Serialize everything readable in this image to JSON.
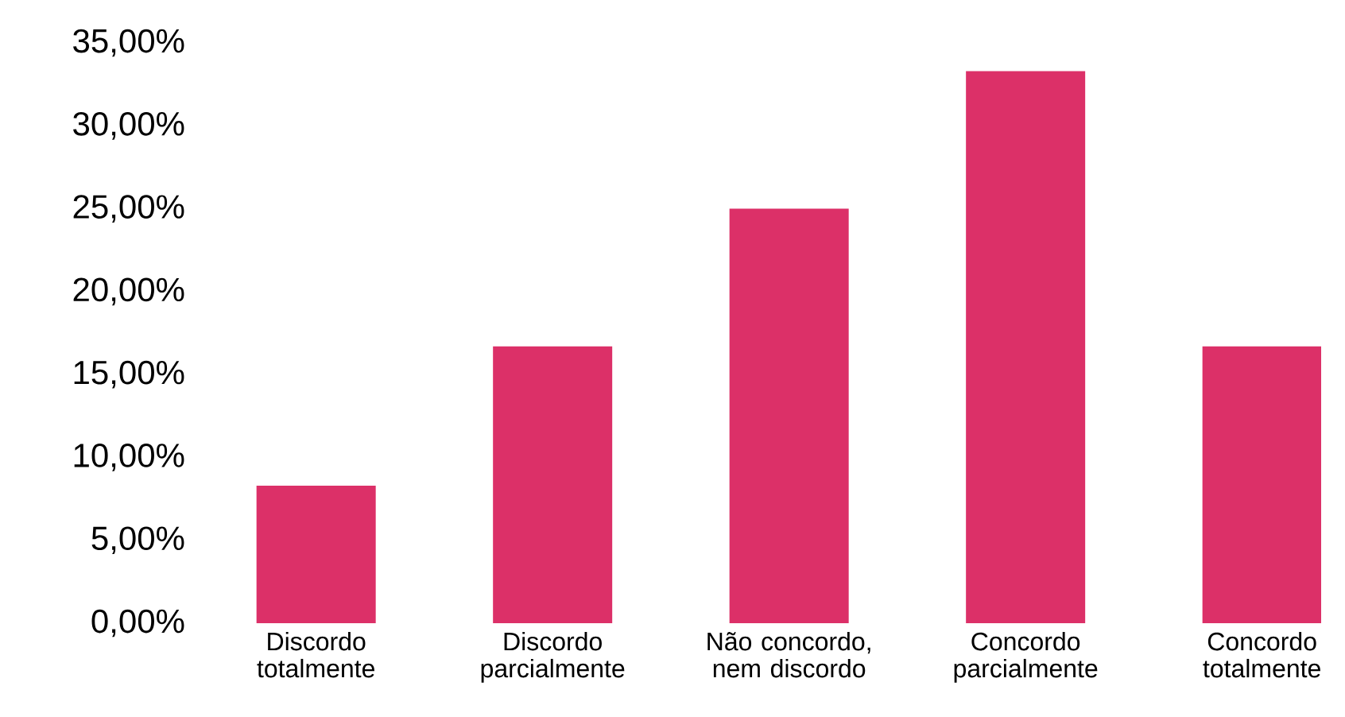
{
  "chart_data": {
    "type": "bar",
    "categories": [
      "Discordo totalmente",
      "Discordo parcialmente",
      "Não concordo, nem discordo",
      "Concordo parcialmente",
      "Concordo totalmente"
    ],
    "values": [
      8.3,
      16.7,
      25,
      33.3,
      16.7
    ],
    "color": "#dc3068",
    "ylim": [
      0,
      35
    ],
    "yticks": [
      {
        "value": 0,
        "label": "0,00%"
      },
      {
        "value": 5,
        "label": "5,00%"
      },
      {
        "value": 10,
        "label": "10,00%"
      },
      {
        "value": 15,
        "label": "15,00%"
      },
      {
        "value": 20,
        "label": "20,00%"
      },
      {
        "value": 25,
        "label": "25,00%"
      },
      {
        "value": 30,
        "label": "30,00%"
      },
      {
        "value": 35,
        "label": "35,00%"
      }
    ]
  }
}
